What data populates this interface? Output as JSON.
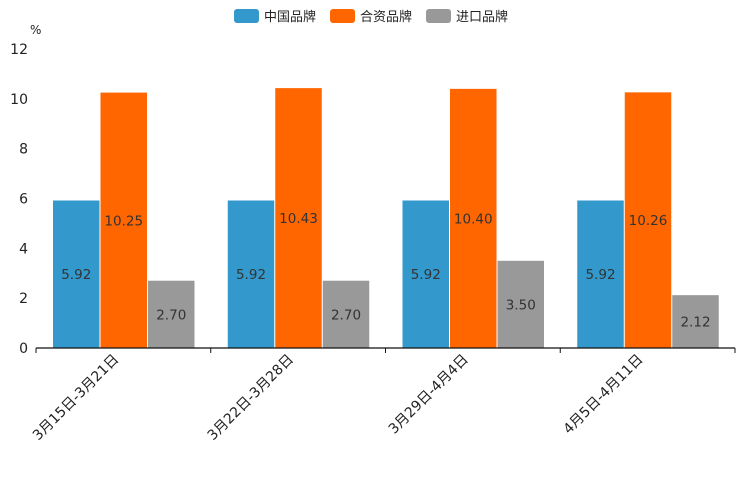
{
  "chart_data": {
    "type": "bar",
    "title": "",
    "xlabel": "",
    "ylabel": "%",
    "ylim": [
      0,
      12
    ],
    "yticks": [
      0,
      2,
      4,
      6,
      8,
      10,
      12
    ],
    "categories": [
      "3月15日-3月21日",
      "3月22日-3月28日",
      "3月29日-4月4日",
      "4月5日-4月11日"
    ],
    "series": [
      {
        "name": "中国品牌",
        "color": "#3399cc",
        "values": [
          5.92,
          5.92,
          5.92,
          5.92
        ],
        "labels": [
          "5.92",
          "5.92",
          "5.92",
          "5.92"
        ]
      },
      {
        "name": "合资品牌",
        "color": "#ff6600",
        "values": [
          10.25,
          10.43,
          10.4,
          10.26
        ],
        "labels": [
          "10.25",
          "10.43",
          "10.40",
          "10.26"
        ]
      },
      {
        "name": "进口品牌",
        "color": "#999999",
        "values": [
          2.7,
          2.7,
          3.5,
          2.12
        ],
        "labels": [
          "2.70",
          "2.70",
          "3.50",
          "2.12"
        ]
      }
    ],
    "legend_position": "top-center",
    "grid": false
  }
}
